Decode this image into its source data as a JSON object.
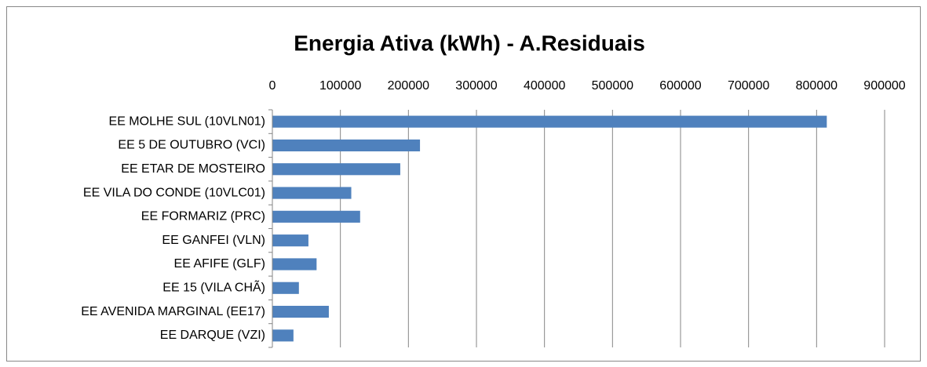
{
  "chart_data": {
    "type": "bar",
    "orientation": "horizontal",
    "title": "Energia Ativa (kWh) - A.Residuais",
    "categories": [
      "EE MOLHE SUL (10VLN01)",
      "EE 5 DE OUTUBRO (VCI)",
      "EE ETAR DE MOSTEIRO",
      "EE VILA DO CONDE (10VLC01)",
      "EE FORMARIZ (PRC)",
      "EE GANFEI (VLN)",
      "EE AFIFE (GLF)",
      "EE 15 (VILA CHÃ)",
      "EE AVENIDA MARGINAL (EE17)",
      "EE DARQUE (VZI)"
    ],
    "values": [
      815000,
      217000,
      188000,
      116000,
      129000,
      53000,
      65000,
      39000,
      83000,
      31000
    ],
    "color": "#4f81bd",
    "xlim": [
      0,
      900000
    ],
    "xticks": [
      0,
      100000,
      200000,
      300000,
      400000,
      500000,
      600000,
      700000,
      800000,
      900000
    ],
    "grid": true
  }
}
